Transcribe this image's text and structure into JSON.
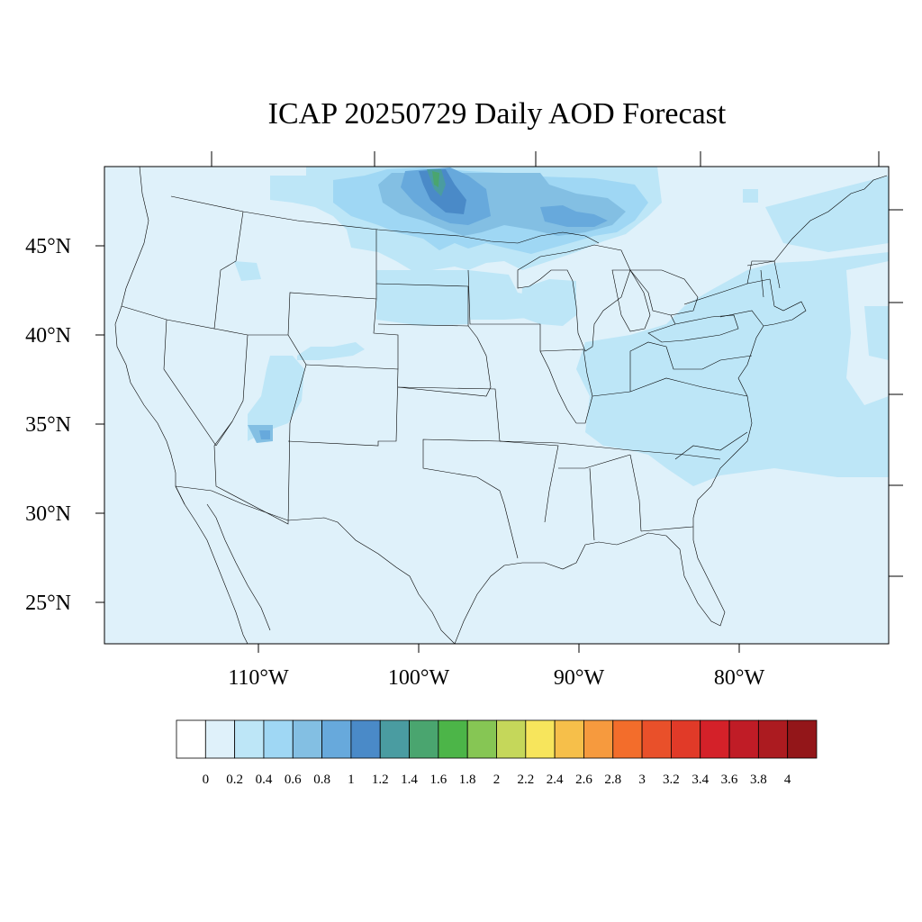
{
  "title": "ICAP 20250729 Daily AOD Forecast",
  "map": {
    "region": "Contiguous United States",
    "lon_range": [
      -119.5,
      -70.5
    ],
    "lat_range": [
      22.8,
      49.4
    ],
    "ocean_color": "#dff1fa"
  },
  "axes": {
    "lat_labels": [
      "45°N",
      "40°N",
      "35°N",
      "30°N",
      "25°N"
    ],
    "lat_values": [
      45,
      40,
      35,
      30,
      25
    ],
    "lon_labels": [
      "110°W",
      "100°W",
      "90°W",
      "80°W"
    ],
    "lon_values": [
      -110,
      -100,
      -90,
      -80
    ]
  },
  "colorbar": {
    "labels": [
      "0",
      "0.2",
      "0.4",
      "0.6",
      "0.8",
      "1",
      "1.2",
      "1.4",
      "1.6",
      "1.8",
      "2",
      "2.2",
      "2.4",
      "2.6",
      "2.8",
      "3",
      "3.2",
      "3.4",
      "3.6",
      "3.8",
      "4"
    ],
    "colors": [
      "#ffffff",
      "#dff1fa",
      "#bde6f7",
      "#9fd7f4",
      "#83bfe3",
      "#67a9dc",
      "#4a8ac8",
      "#4a9ca1",
      "#4aa56f",
      "#4cb548",
      "#86c654",
      "#c5d75a",
      "#f7e55c",
      "#f6bf4a",
      "#f69a3e",
      "#f36d2b",
      "#e9502a",
      "#e13a28",
      "#d42129",
      "#c01c26",
      "#ac1b20",
      "#931619"
    ]
  }
}
